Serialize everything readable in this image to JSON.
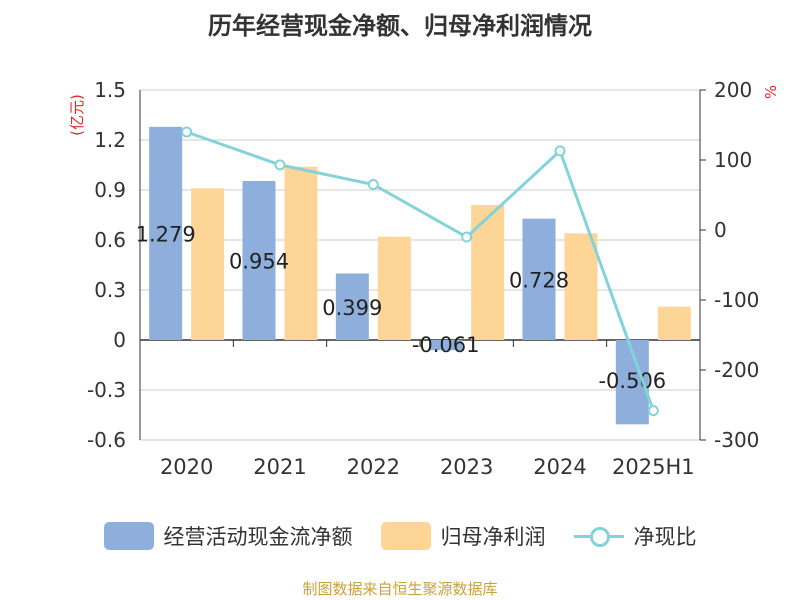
{
  "title": "历年经营现金净额、归母净利润情况",
  "source": "制图数据来自恒生聚源数据库",
  "colors": {
    "cashflow": "#8eaedb",
    "profit": "#fdd597",
    "ratio": "#84d3d8",
    "unit": "#e02a2a",
    "source": "#c9a23b"
  },
  "chart_data": {
    "type": "bar+line",
    "categories": [
      "2020",
      "2021",
      "2022",
      "2023",
      "2024",
      "2025H1"
    ],
    "left_axis": {
      "unit": "(亿元)",
      "ylim": [
        -0.6,
        1.5
      ],
      "ticks": [
        "1.5",
        "1.2",
        "0.9",
        "0.6",
        "0.3",
        "0",
        "-0.3",
        "-0.6"
      ],
      "tick_values": [
        1.5,
        1.2,
        0.9,
        0.6,
        0.3,
        0,
        -0.3,
        -0.6
      ]
    },
    "right_axis": {
      "unit": "%",
      "ylim": [
        -300,
        200
      ],
      "ticks": [
        "200",
        "100",
        "0",
        "-100",
        "-200",
        "-300"
      ],
      "tick_values": [
        200,
        100,
        0,
        -100,
        -200,
        -300
      ]
    },
    "series": [
      {
        "name": "经营活动现金流净额",
        "type": "bar",
        "axis": "left",
        "values": [
          1.279,
          0.954,
          0.399,
          -0.061,
          0.728,
          -0.506
        ],
        "labels": [
          "1.279",
          "0.954",
          "0.399",
          "-0.061",
          "0.728",
          "-0.506"
        ]
      },
      {
        "name": "归母净利润",
        "type": "bar",
        "axis": "left",
        "values": [
          0.91,
          1.04,
          0.62,
          0.81,
          0.64,
          0.2
        ]
      },
      {
        "name": "净现比",
        "type": "line",
        "axis": "right",
        "values": [
          140,
          93,
          65,
          -10,
          113,
          -258
        ]
      }
    ],
    "grid": true,
    "legend_position": "bottom"
  }
}
